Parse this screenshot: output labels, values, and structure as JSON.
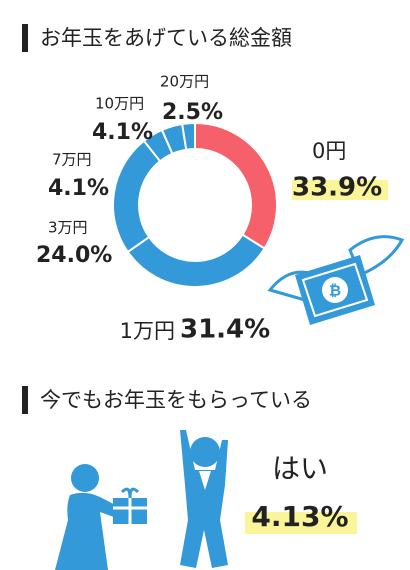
{
  "chart_data": {
    "type": "pie",
    "title": "お年玉をあげている総金額",
    "categories": [
      "0円",
      "1万円",
      "3万円",
      "7万円",
      "10万円",
      "20万円"
    ],
    "values": [
      33.9,
      31.4,
      24.0,
      4.1,
      4.1,
      2.5
    ],
    "value_labels": [
      "33.9%",
      "31.4%",
      "24.0%",
      "4.1%",
      "4.1%",
      "2.5%"
    ],
    "colors": [
      "#f5606a",
      "#3399d8",
      "#3399d8",
      "#3399d8",
      "#3399d8",
      "#3399d8"
    ]
  },
  "section2": {
    "title": "今でもお年玉をもらっている",
    "answer": "はい",
    "percentage": "4.13%"
  }
}
